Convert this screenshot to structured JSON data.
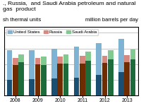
{
  "chart_data": {
    "type": "bar",
    "title": "., Russia,  and Saudi Arabia petroleum and natural gas  product",
    "subtitle": "sh thermal units",
    "annotations": [
      "million barrels per day"
    ],
    "categories": [
      "2008",
      "2009",
      "2010",
      "2011",
      "2012",
      "2013"
    ],
    "series": [
      {
        "name": "United States",
        "segments": [
          {
            "color": "#1b4f72",
            "values": [
              5.0,
              5.2,
              5.5,
              5.7,
              6.5,
              7.5
            ]
          },
          {
            "color": "#7fb3d3",
            "values": [
              9.5,
              9.2,
              9.5,
              9.8,
              10.2,
              10.5
            ]
          }
        ]
      },
      {
        "name": "Russia",
        "segments": [
          {
            "color": "#6e2c00",
            "values": [
              9.7,
              9.9,
              10.1,
              10.2,
              10.4,
              10.6
            ]
          },
          {
            "color": "#d98880",
            "values": [
              2.3,
              2.0,
              2.3,
              2.4,
              2.3,
              2.2
            ]
          }
        ]
      },
      {
        "name": "Saudi Arabia",
        "segments": [
          {
            "color": "#1d6a3a",
            "values": [
              10.5,
              9.7,
              10.2,
              11.1,
              11.5,
              11.6
            ]
          },
          {
            "color": "#82c990",
            "values": [
              2.6,
              2.6,
              2.8,
              2.9,
              3.0,
              3.1
            ]
          }
        ]
      }
    ],
    "stacked": true,
    "ylim": [
      0,
      22
    ],
    "yticks": [
      5,
      10,
      15,
      20
    ],
    "grid": true,
    "tick_labels": "x",
    "legend": "upper left"
  }
}
